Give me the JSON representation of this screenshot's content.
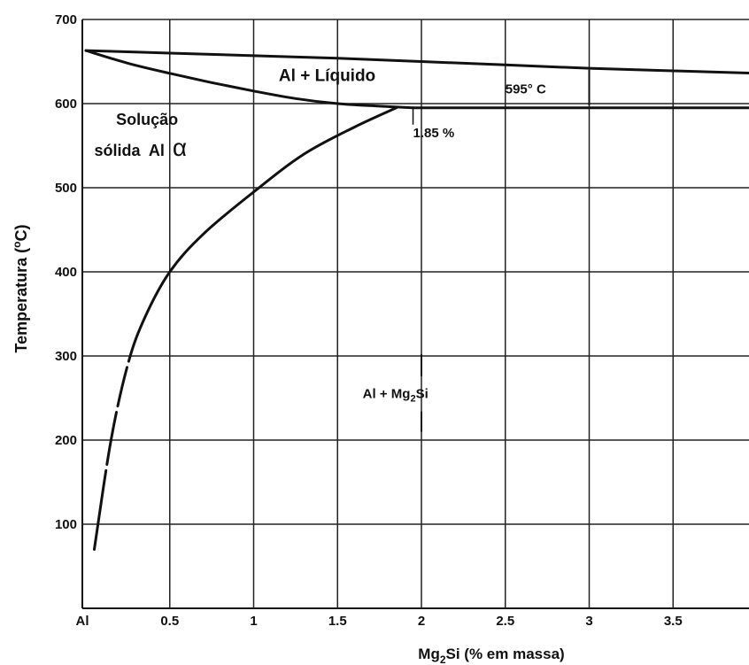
{
  "chart_data": {
    "type": "line",
    "title": "",
    "xlabel": "Mg₂Si (% em massa)",
    "xlabel_parts": {
      "pre": "Mg",
      "sub": "2",
      "post": "Si (% em massa)"
    },
    "ylabel": "Temperatura (oC)",
    "ylabel_parts": {
      "pre": "Temperatura (",
      "sup": "o",
      "post": "C)"
    },
    "xlim": [
      0,
      4
    ],
    "ylim": [
      0,
      700
    ],
    "x_ticks": [
      {
        "value": 0,
        "label": "Al"
      },
      {
        "value": 0.5,
        "label": "0.5"
      },
      {
        "value": 1,
        "label": "1"
      },
      {
        "value": 1.5,
        "label": "1.5"
      },
      {
        "value": 2,
        "label": "2"
      },
      {
        "value": 2.5,
        "label": "2.5"
      },
      {
        "value": 3,
        "label": "3"
      },
      {
        "value": 3.5,
        "label": "3.5"
      }
    ],
    "y_ticks": [
      {
        "value": 100,
        "label": "100"
      },
      {
        "value": 200,
        "label": "200"
      },
      {
        "value": 300,
        "label": "300"
      },
      {
        "value": 400,
        "label": "400"
      },
      {
        "value": 500,
        "label": "500"
      },
      {
        "value": 600,
        "label": "600"
      },
      {
        "value": 700,
        "label": "700"
      }
    ],
    "grid": true,
    "series": [
      {
        "key": "liquidus",
        "x": [
          0,
          0.5,
          1,
          1.5,
          2,
          2.5,
          3,
          3.5,
          4
        ],
        "y": [
          663,
          660,
          657,
          654,
          650,
          646,
          642,
          639,
          636
        ]
      },
      {
        "key": "solidus",
        "x": [
          0,
          0.25,
          0.5,
          0.75,
          1,
          1.25,
          1.5,
          1.75,
          1.95
        ],
        "y": [
          663,
          648,
          636,
          625,
          615,
          606,
          600,
          597,
          595
        ]
      },
      {
        "key": "eutectic",
        "x": [
          1.95,
          2.5,
          3,
          3.5,
          4
        ],
        "y": [
          595,
          595,
          595,
          595,
          595
        ]
      },
      {
        "key": "solvus",
        "x": [
          0.05,
          0.15,
          0.25,
          0.35,
          0.5,
          0.7,
          1,
          1.3,
          1.6,
          1.85
        ],
        "y": [
          70,
          200,
          290,
          345,
          400,
          445,
          495,
          540,
          572,
          595
        ]
      }
    ],
    "annotations": [
      {
        "key": "liquid",
        "text": "Al + Líquido",
        "x": 1.15,
        "y": 627
      },
      {
        "key": "eutectic_temp",
        "text": "595° C",
        "x": 2.5,
        "y": 612
      },
      {
        "key": "eutectic_comp",
        "text": "1.85 %",
        "x": 1.95,
        "y": 560
      },
      {
        "key": "solid_solution_1",
        "text": "Solução",
        "x": 0.18,
        "y": 575
      },
      {
        "key": "solid_solution_2",
        "text": "sólida  Al α",
        "x": 0.05,
        "y": 538
      },
      {
        "key": "two_phase",
        "text": "Al + Mg2Si",
        "x": 1.65,
        "y": 250,
        "parts": {
          "pre": "Al + Mg",
          "sub": "2",
          "post": "Si"
        }
      }
    ]
  }
}
